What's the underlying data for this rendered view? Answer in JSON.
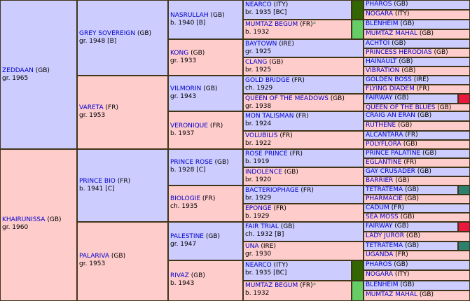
{
  "gen1": [
    {
      "name": "ZEDDAAN",
      "country": "(GB)",
      "info": "gr. 1965"
    },
    {
      "name": "KHAIRUNISSA",
      "country": "(GB)",
      "info": "gr. 1960"
    }
  ],
  "gen2": [
    {
      "name": "GREY SOVEREIGN",
      "country": "(GB)",
      "info": "gr. 1948 [B]"
    },
    {
      "name": "VARETA",
      "country": "(FR)",
      "info": "gr. 1953"
    },
    {
      "name": "PRINCE BIO",
      "country": "(FR)",
      "info": "b. 1941 [C]"
    },
    {
      "name": "PALARIVA",
      "country": "(GB)",
      "info": "gr. 1953"
    }
  ],
  "gen3": [
    {
      "name": "NASRULLAH",
      "country": "(GB)",
      "info": "b. 1940 [B]"
    },
    {
      "name": "KONG",
      "country": "(GB)",
      "info": "gr. 1933"
    },
    {
      "name": "VILMORIN",
      "country": "(GB)",
      "info": "gr. 1943"
    },
    {
      "name": "VERONIQUE",
      "country": "(FR)",
      "info": "b. 1937"
    },
    {
      "name": "PRINCE ROSE",
      "country": "(GB)",
      "info": "b. 1928 [C]"
    },
    {
      "name": "BIOLOGIE",
      "country": "(FR)",
      "info": "ch. 1935"
    },
    {
      "name": "PALESTINE",
      "country": "(GB)",
      "info": "gr. 1947"
    },
    {
      "name": "RIVAZ",
      "country": "(GB)",
      "info": "b. 1943"
    }
  ],
  "gen4": [
    {
      "name": "NEARCO",
      "country": "(ITY)",
      "info": "br. 1935 [BC]"
    },
    {
      "name": "MUMTAZ BEGUM",
      "country": "(FR)",
      "star": "*",
      "info": "b. 1932"
    },
    {
      "name": "BAYTOWN",
      "country": "(IRE)",
      "info": "gr. 1925"
    },
    {
      "name": "CLANG",
      "country": "(GB)",
      "info": "br. 1925"
    },
    {
      "name": "GOLD BRIDGE",
      "country": "(FR)",
      "info": "ch. 1929"
    },
    {
      "name": "QUEEN OF THE MEADOWS",
      "country": "(GB)",
      "info": "gr. 1938"
    },
    {
      "name": "MON TALISMAN",
      "country": "(FR)",
      "info": "br. 1924"
    },
    {
      "name": "VOLUBILIS",
      "country": "(FR)",
      "info": "br. 1922"
    },
    {
      "name": "ROSE PRINCE",
      "country": "(FR)",
      "info": "b. 1919"
    },
    {
      "name": "INDOLENCE",
      "country": "(GB)",
      "info": "br. 1920"
    },
    {
      "name": "BACTERIOPHAGE",
      "country": "(FR)",
      "info": "br. 1929"
    },
    {
      "name": "EPONGE",
      "country": "(FR)",
      "info": "b. 1929"
    },
    {
      "name": "FAIR TRIAL",
      "country": "(GB)",
      "info": "ch. 1932 [B]"
    },
    {
      "name": "UNA",
      "country": "(IRE)",
      "info": "gr. 1930"
    },
    {
      "name": "NEARCO",
      "country": "(ITY)",
      "info": "br. 1935 [BC]"
    },
    {
      "name": "MUMTAZ BEGUM",
      "country": "(FR)",
      "star": "*",
      "info": "b. 1932"
    }
  ],
  "gen5": [
    {
      "name": "PHAROS",
      "country": "(GB)"
    },
    {
      "name": "NOGARA",
      "country": "(ITY)"
    },
    {
      "name": "BLENHEIM",
      "country": "(GB)"
    },
    {
      "name": "MUMTAZ MAHAL",
      "country": "(GB)"
    },
    {
      "name": "ACHTOI",
      "country": "(GB)"
    },
    {
      "name": "PRINCESS HERODIAS",
      "country": "(GB)"
    },
    {
      "name": "HAINAULT",
      "country": "(GB)"
    },
    {
      "name": "VIBRATION",
      "country": "(GB)"
    },
    {
      "name": "GOLDEN BOSS",
      "country": "(IRE)"
    },
    {
      "name": "FLYING DIADEM",
      "country": "(FR)"
    },
    {
      "name": "FAIRWAY",
      "country": "(GB)"
    },
    {
      "name": "QUEEN OF THE BLUES",
      "country": "(GB)"
    },
    {
      "name": "CRAIG AN ERAN",
      "country": "(GB)"
    },
    {
      "name": "RUTHENE",
      "country": "(GB)"
    },
    {
      "name": "ALCANTARA",
      "country": "(FR)"
    },
    {
      "name": "POLYFLORA",
      "country": "(GB)"
    },
    {
      "name": "PRINCE PALATINE",
      "country": "(GB)"
    },
    {
      "name": "EGLANTINE",
      "country": "(FR)"
    },
    {
      "name": "GAY CRUSADER",
      "country": "(GB)"
    },
    {
      "name": "BARRIER",
      "country": "(GB)"
    },
    {
      "name": "TETRATEMA",
      "country": "(GB)"
    },
    {
      "name": "PHARMACIE",
      "country": "(GB)"
    },
    {
      "name": "CADUM",
      "country": "(FR)"
    },
    {
      "name": "SEA MOSS",
      "country": "(GB)"
    },
    {
      "name": "FAIRWAY",
      "country": "(GB)"
    },
    {
      "name": "LADY JUROR",
      "country": "(GB)"
    },
    {
      "name": "TETRATEMA",
      "country": "(GB)"
    },
    {
      "name": "UGANDA",
      "country": "(FR)"
    },
    {
      "name": "PHAROS",
      "country": "(GB)"
    },
    {
      "name": "NOGARA",
      "country": "(ITY)"
    },
    {
      "name": "BLENHEIM",
      "country": "(GB)"
    },
    {
      "name": "MUMTAZ MAHAL",
      "country": "(GB)"
    }
  ],
  "marker_colors": {
    "nearco": "#336600",
    "mumtaz_begum": "#66cc66",
    "fairway": "#e8193c",
    "tetratema": "#2f7f6f"
  }
}
